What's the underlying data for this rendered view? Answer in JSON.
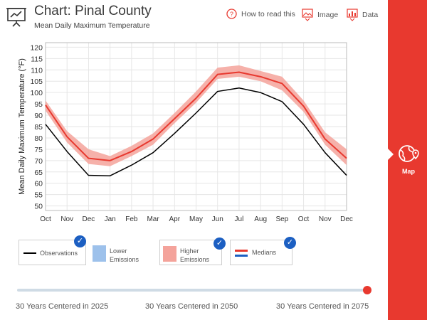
{
  "header": {
    "title": "Chart: Pinal County",
    "subtitle": "Mean Daily Maximum Temperature",
    "how_to_read": "How to read this",
    "image_label": "Image",
    "data_label": "Data"
  },
  "chart_data": {
    "type": "line",
    "ylabel": "Mean Daily Maximum Temperature (°F)",
    "xlabel": "",
    "categories": [
      "Oct",
      "Nov",
      "Dec",
      "Jan",
      "Feb",
      "Mar",
      "Apr",
      "May",
      "Jun",
      "Jul",
      "Aug",
      "Sep",
      "Oct",
      "Nov",
      "Dec"
    ],
    "ylim": [
      48,
      122
    ],
    "yticks": [
      50,
      55,
      60,
      65,
      70,
      75,
      80,
      85,
      90,
      95,
      100,
      105,
      110,
      115,
      120
    ],
    "grid": true,
    "series": [
      {
        "name": "Observations",
        "color": "#000000",
        "values": [
          86,
          74,
          63.5,
          63.3,
          68,
          73.5,
          82,
          91,
          100.5,
          102,
          100,
          96,
          86,
          73.5,
          63.5
        ]
      },
      {
        "name": "Medians",
        "color": "#e8392f",
        "values": [
          94.5,
          80.5,
          71,
          70,
          74,
          79.5,
          88.5,
          97.5,
          108,
          109,
          107,
          104,
          94,
          79.5,
          71
        ]
      },
      {
        "name": "Higher Emissions range",
        "color": "#f4a39b",
        "low": [
          92,
          78,
          68.5,
          67.5,
          72,
          77,
          86.5,
          95.5,
          106,
          107,
          105,
          101,
          91.5,
          77,
          68
        ],
        "high": [
          96.5,
          83,
          75,
          72,
          76.5,
          82,
          91,
          100.5,
          111,
          112,
          109.5,
          107,
          96.5,
          82.5,
          75
        ]
      }
    ]
  },
  "legend": {
    "observations": "Observations",
    "lower_line1": "Lower",
    "lower_line2": "Emissions",
    "higher_line1": "Higher",
    "higher_line2": "Emissions",
    "medians": "Medians",
    "check": "✓"
  },
  "timeline": {
    "labels": [
      "30 Years Centered in 2025",
      "30 Years Centered in 2050",
      "30 Years Centered in 2075"
    ],
    "selected_index": 2
  },
  "sidebar": {
    "map_label": "Map"
  },
  "colors": {
    "accent": "#e8392f",
    "check": "#1c5fc2",
    "band": "#f4a39b",
    "lower": "#9dc1eb"
  }
}
